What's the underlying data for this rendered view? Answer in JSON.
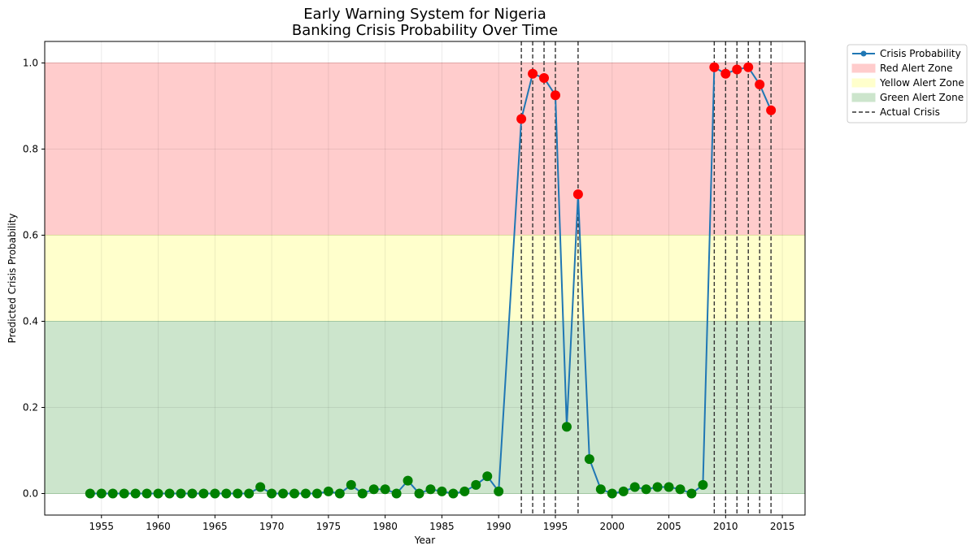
{
  "chart_data": {
    "type": "line",
    "title": "Early Warning System for Nigeria\nBanking Crisis Probability Over Time",
    "xlabel": "Year",
    "ylabel": "Predicted Crisis Probability",
    "xlim": [
      1950,
      2017
    ],
    "ylim": [
      -0.05,
      1.05
    ],
    "xticks": [
      1955,
      1960,
      1965,
      1970,
      1975,
      1980,
      1985,
      1990,
      1995,
      2000,
      2005,
      2010,
      2015
    ],
    "yticks": [
      0.0,
      0.2,
      0.4,
      0.6,
      0.8,
      1.0
    ],
    "grid": true,
    "legend_position": "outside-top-right",
    "colors": {
      "line": "#1f77b4",
      "point_high": "#ff0000",
      "point_low": "#008000",
      "red_zone": "#ffcccc",
      "yellow_zone": "#ffffcc",
      "green_zone": "#cce5cc",
      "crisis_line": "#333333"
    },
    "zones": [
      {
        "name": "Red Alert Zone",
        "from": 0.6,
        "to": 1.0
      },
      {
        "name": "Yellow Alert Zone",
        "from": 0.4,
        "to": 0.6
      },
      {
        "name": "Green Alert Zone",
        "from": 0.0,
        "to": 0.4
      }
    ],
    "series": [
      {
        "name": "Crisis Probability",
        "x": [
          1954,
          1955,
          1956,
          1957,
          1958,
          1959,
          1960,
          1961,
          1962,
          1963,
          1964,
          1965,
          1966,
          1967,
          1968,
          1969,
          1970,
          1971,
          1972,
          1973,
          1974,
          1975,
          1976,
          1977,
          1978,
          1979,
          1980,
          1981,
          1982,
          1983,
          1984,
          1985,
          1986,
          1987,
          1988,
          1989,
          1990,
          1992,
          1993,
          1994,
          1995,
          1996,
          1997,
          1998,
          1999,
          2000,
          2001,
          2002,
          2003,
          2004,
          2005,
          2006,
          2007,
          2008,
          2009,
          2010,
          2011,
          2012,
          2013,
          2014
        ],
        "y": [
          0,
          0,
          0,
          0,
          0,
          0,
          0,
          0,
          0,
          0,
          0,
          0,
          0,
          0,
          0,
          0.015,
          0,
          0,
          0,
          0,
          0,
          0.005,
          0,
          0.02,
          0,
          0.01,
          0.01,
          0,
          0.03,
          0,
          0.01,
          0.005,
          0,
          0.005,
          0.02,
          0.04,
          0.005,
          0.87,
          0.975,
          0.965,
          0.925,
          0.155,
          0.695,
          0.08,
          0.01,
          0,
          0.005,
          0.015,
          0.01,
          0.015,
          0.015,
          0.01,
          0,
          0.02,
          0.99,
          0.975,
          0.985,
          0.99,
          0.95,
          0.89
        ]
      }
    ],
    "crisis_years": [
      1992,
      1993,
      1994,
      1995,
      1997,
      2009,
      2010,
      2011,
      2012,
      2013,
      2014
    ],
    "legend": [
      {
        "key": "line",
        "label": "Crisis Probability"
      },
      {
        "key": "red",
        "label": "Red Alert Zone"
      },
      {
        "key": "yellow",
        "label": "Yellow Alert Zone"
      },
      {
        "key": "green",
        "label": "Green Alert Zone"
      },
      {
        "key": "crisis",
        "label": "Actual Crisis"
      }
    ]
  }
}
